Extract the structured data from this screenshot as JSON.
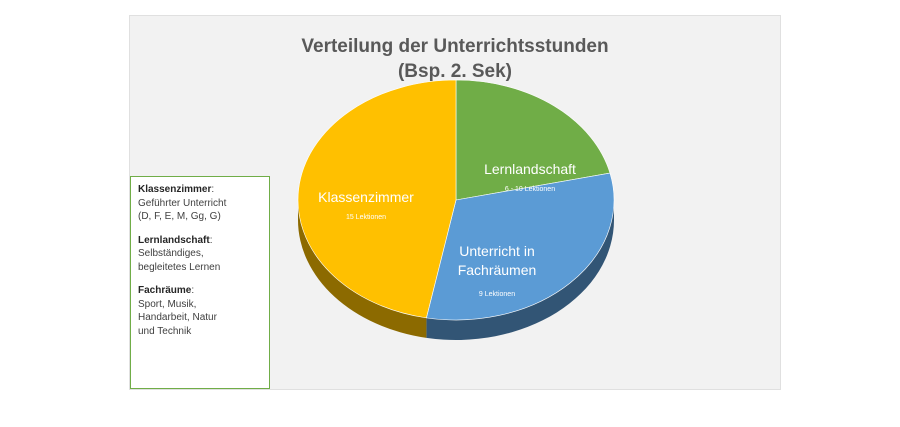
{
  "chart_data": {
    "type": "pie",
    "title": [
      "Verteilung der Unterrichtsstunden",
      "(Bsp. 2. Sek)"
    ],
    "slices": [
      {
        "label": "Lernlandschaft",
        "sublabel": "6 - 10 Lektionen",
        "value": 0.214,
        "color": "#70ad47"
      },
      {
        "label": "Unterricht in Fachräumen",
        "sublabel": "9 Lektionen",
        "value": 0.316,
        "color": "#5b9bd5"
      },
      {
        "label": "Klassenzimmer",
        "sublabel": "15 Lektionen",
        "value": 0.47,
        "color": "#ffc000"
      }
    ]
  },
  "legend": {
    "classroom": {
      "title": "Klassenzimmer",
      "sep": ":",
      "lines": [
        "Geführter Unterricht",
        "(D, F, E, M, Gg, G)"
      ]
    },
    "landscape": {
      "title": "Lernlandschaft",
      "sep": ":",
      "lines": [
        "Selbständiges,",
        "begleitetes Lernen"
      ]
    },
    "special": {
      "title": "Fachräume",
      "sep": ":",
      "lines": [
        "Sport, Musik,",
        "Handarbeit, Natur",
        "und Technik"
      ]
    }
  }
}
